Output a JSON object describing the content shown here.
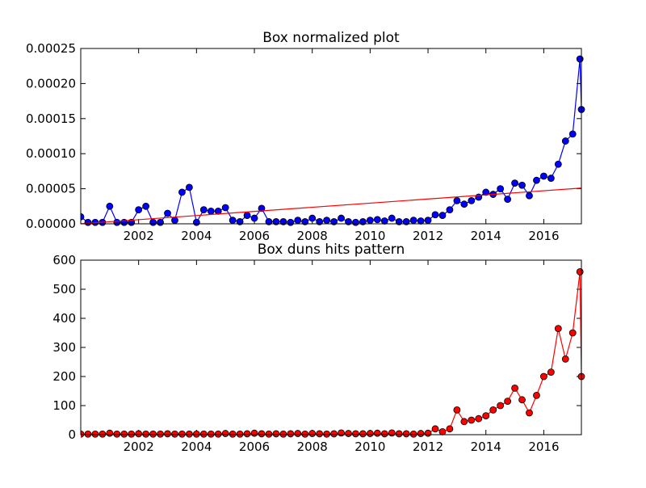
{
  "chart_data": [
    {
      "type": "line",
      "title": "Box normalized plot",
      "x": [
        2000,
        2000.25,
        2000.5,
        2000.75,
        2001,
        2001.25,
        2001.5,
        2001.75,
        2002,
        2002.25,
        2002.5,
        2002.75,
        2003,
        2003.25,
        2003.5,
        2003.75,
        2004,
        2004.25,
        2004.5,
        2004.75,
        2005,
        2005.25,
        2005.5,
        2005.75,
        2006,
        2006.25,
        2006.5,
        2006.75,
        2007,
        2007.25,
        2007.5,
        2007.75,
        2008,
        2008.25,
        2008.5,
        2008.75,
        2009,
        2009.25,
        2009.5,
        2009.75,
        2010,
        2010.25,
        2010.5,
        2010.75,
        2011,
        2011.25,
        2011.5,
        2011.75,
        2012,
        2012.25,
        2012.5,
        2012.75,
        2013,
        2013.25,
        2013.5,
        2013.75,
        2014,
        2014.25,
        2014.5,
        2014.75,
        2015,
        2015.25,
        2015.5,
        2015.75,
        2016,
        2016.25,
        2016.5,
        2016.75,
        2017,
        2017.25,
        2017.3
      ],
      "xlim": [
        2000,
        2017.3
      ],
      "xticks": [
        2002,
        2004,
        2006,
        2008,
        2010,
        2012,
        2014,
        2016
      ],
      "ylim": [
        0,
        0.00025
      ],
      "yticks": [
        {
          "value": 0,
          "label": "0.00000"
        },
        {
          "value": 5e-05,
          "label": "0.00005"
        },
        {
          "value": 0.0001,
          "label": "0.00010"
        },
        {
          "value": 0.00015,
          "label": "0.00015"
        },
        {
          "value": 0.0002,
          "label": "0.00020"
        },
        {
          "value": 0.00025,
          "label": "0.00025"
        }
      ],
      "series": [
        {
          "color": "#0000ff",
          "markers": true,
          "values": [
            1e-05,
            2e-06,
            2e-06,
            2e-06,
            2.5e-05,
            2e-06,
            2e-06,
            2e-06,
            2e-05,
            2.5e-05,
            2e-06,
            2e-06,
            1.5e-05,
            5e-06,
            4.5e-05,
            5.2e-05,
            2e-06,
            2e-05,
            1.8e-05,
            1.8e-05,
            2.3e-05,
            5e-06,
            3e-06,
            1.2e-05,
            8e-06,
            2.2e-05,
            3e-06,
            3e-06,
            3e-06,
            2e-06,
            5e-06,
            3e-06,
            8e-06,
            3e-06,
            5e-06,
            3e-06,
            8e-06,
            3e-06,
            2e-06,
            3e-06,
            5e-06,
            6e-06,
            4e-06,
            8e-06,
            3e-06,
            3e-06,
            5e-06,
            4e-06,
            5e-06,
            1.3e-05,
            1.2e-05,
            2e-05,
            3.3e-05,
            2.8e-05,
            3.3e-05,
            3.8e-05,
            4.5e-05,
            4.2e-05,
            5e-05,
            3.5e-05,
            5.8e-05,
            5.5e-05,
            4e-05,
            6.2e-05,
            6.8e-05,
            6.5e-05,
            8.5e-05,
            0.000118,
            0.000128,
            0.000235,
            0.000163
          ]
        },
        {
          "color": "#ff0000",
          "markers": false,
          "x": [
            2000,
            2017.3
          ],
          "values": [
            0,
            5.1e-05
          ]
        }
      ]
    },
    {
      "type": "line",
      "title": "Box duns hits pattern",
      "x": [
        2000,
        2000.25,
        2000.5,
        2000.75,
        2001,
        2001.25,
        2001.5,
        2001.75,
        2002,
        2002.25,
        2002.5,
        2002.75,
        2003,
        2003.25,
        2003.5,
        2003.75,
        2004,
        2004.25,
        2004.5,
        2004.75,
        2005,
        2005.25,
        2005.5,
        2005.75,
        2006,
        2006.25,
        2006.5,
        2006.75,
        2007,
        2007.25,
        2007.5,
        2007.75,
        2008,
        2008.25,
        2008.5,
        2008.75,
        2009,
        2009.25,
        2009.5,
        2009.75,
        2010,
        2010.25,
        2010.5,
        2010.75,
        2011,
        2011.25,
        2011.5,
        2011.75,
        2012,
        2012.25,
        2012.5,
        2012.75,
        2013,
        2013.25,
        2013.5,
        2013.75,
        2014,
        2014.25,
        2014.5,
        2014.75,
        2015,
        2015.25,
        2015.5,
        2015.75,
        2016,
        2016.25,
        2016.5,
        2016.75,
        2017,
        2017.25,
        2017.3
      ],
      "xlim": [
        2000,
        2017.3
      ],
      "xticks": [
        2002,
        2004,
        2006,
        2008,
        2010,
        2012,
        2014,
        2016
      ],
      "ylim": [
        0,
        600
      ],
      "yticks": [
        0,
        100,
        200,
        300,
        400,
        500,
        600
      ],
      "series": [
        {
          "color": "#ff0000",
          "markers": true,
          "values": [
            2,
            2,
            2,
            2,
            5,
            2,
            2,
            2,
            3,
            2,
            2,
            2,
            3,
            2,
            2,
            2,
            2,
            2,
            2,
            2,
            4,
            2,
            2,
            3,
            5,
            3,
            2,
            3,
            2,
            3,
            4,
            2,
            4,
            3,
            2,
            3,
            6,
            4,
            3,
            3,
            4,
            5,
            3,
            6,
            3,
            3,
            2,
            4,
            5,
            20,
            10,
            20,
            85,
            45,
            50,
            55,
            65,
            85,
            100,
            115,
            160,
            120,
            75,
            135,
            200,
            215,
            365,
            260,
            350,
            560,
            200
          ]
        }
      ]
    }
  ]
}
